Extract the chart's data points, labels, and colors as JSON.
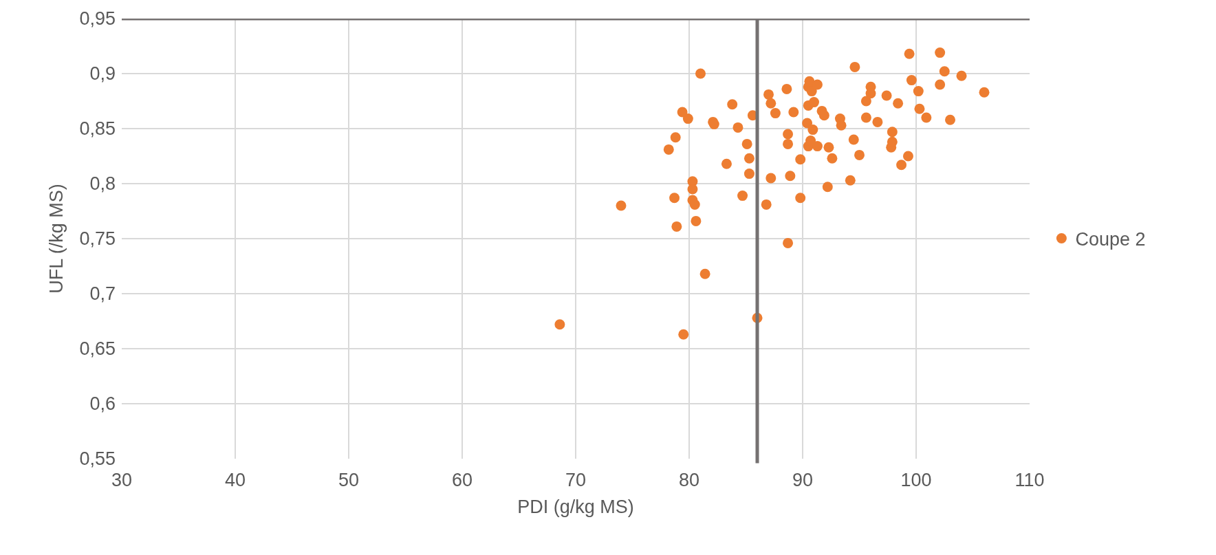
{
  "chart_data": {
    "type": "scatter",
    "xlabel": "PDI (g/kg MS)",
    "ylabel": "UFL (/kg MS)",
    "xlim": [
      30,
      110
    ],
    "xticks": [
      30,
      40,
      50,
      60,
      70,
      80,
      90,
      100,
      110
    ],
    "ylim": [
      0.55,
      0.95
    ],
    "yticks": [
      {
        "value": 0.55,
        "label": "0,55"
      },
      {
        "value": 0.6,
        "label": "0,6"
      },
      {
        "value": 0.65,
        "label": "0,65"
      },
      {
        "value": 0.7,
        "label": "0,7"
      },
      {
        "value": 0.75,
        "label": "0,75"
      },
      {
        "value": 0.8,
        "label": "0,8"
      },
      {
        "value": 0.85,
        "label": "0,85"
      },
      {
        "value": 0.9,
        "label": "0,9"
      },
      {
        "value": 0.95,
        "label": "0,95"
      }
    ],
    "grid": true,
    "legend": "right",
    "marker": "circle",
    "ref_lines": [
      {
        "axis": "x",
        "value": 86.0,
        "color": "#757171"
      },
      {
        "axis": "y",
        "value": 0.95,
        "color": "#757171"
      }
    ],
    "series": [
      {
        "name": "Coupe 2",
        "color": "#ed7d31",
        "x": [
          68.6,
          74.0,
          78.2,
          78.8,
          79.4,
          79.9,
          78.7,
          78.9,
          79.5,
          80.3,
          80.3,
          80.3,
          80.5,
          80.6,
          81.0,
          81.4,
          82.1,
          82.2,
          83.3,
          83.8,
          84.3,
          84.7,
          85.1,
          85.3,
          85.3,
          85.6,
          86.0,
          86.8,
          87.0,
          87.2,
          87.2,
          87.6,
          88.6,
          88.7,
          88.7,
          88.7,
          88.9,
          89.2,
          89.8,
          89.8,
          90.4,
          90.5,
          90.5,
          90.6,
          90.5,
          90.7,
          90.8,
          90.9,
          91.0,
          91.3,
          91.3,
          91.7,
          91.9,
          92.2,
          92.3,
          92.6,
          93.3,
          93.4,
          94.2,
          94.5,
          94.6,
          95.0,
          95.6,
          95.6,
          96.0,
          96.0,
          96.6,
          97.4,
          97.8,
          97.9,
          97.9,
          98.4,
          98.7,
          99.3,
          99.4,
          99.6,
          100.2,
          100.3,
          100.9,
          102.1,
          102.1,
          102.5,
          103.0,
          104.0,
          106.0
        ],
        "values": [
          0.672,
          0.78,
          0.831,
          0.842,
          0.865,
          0.859,
          0.787,
          0.761,
          0.663,
          0.802,
          0.795,
          0.785,
          0.781,
          0.766,
          0.9,
          0.718,
          0.856,
          0.854,
          0.818,
          0.872,
          0.851,
          0.789,
          0.836,
          0.823,
          0.809,
          0.862,
          0.678,
          0.781,
          0.881,
          0.873,
          0.805,
          0.864,
          0.886,
          0.845,
          0.836,
          0.746,
          0.807,
          0.865,
          0.822,
          0.787,
          0.855,
          0.871,
          0.888,
          0.893,
          0.834,
          0.839,
          0.884,
          0.849,
          0.874,
          0.89,
          0.834,
          0.866,
          0.862,
          0.797,
          0.833,
          0.823,
          0.859,
          0.853,
          0.803,
          0.84,
          0.906,
          0.826,
          0.86,
          0.875,
          0.888,
          0.882,
          0.856,
          0.88,
          0.833,
          0.847,
          0.838,
          0.873,
          0.817,
          0.825,
          0.918,
          0.894,
          0.884,
          0.868,
          0.86,
          0.919,
          0.89,
          0.902,
          0.858,
          0.898,
          0.883
        ]
      }
    ]
  }
}
